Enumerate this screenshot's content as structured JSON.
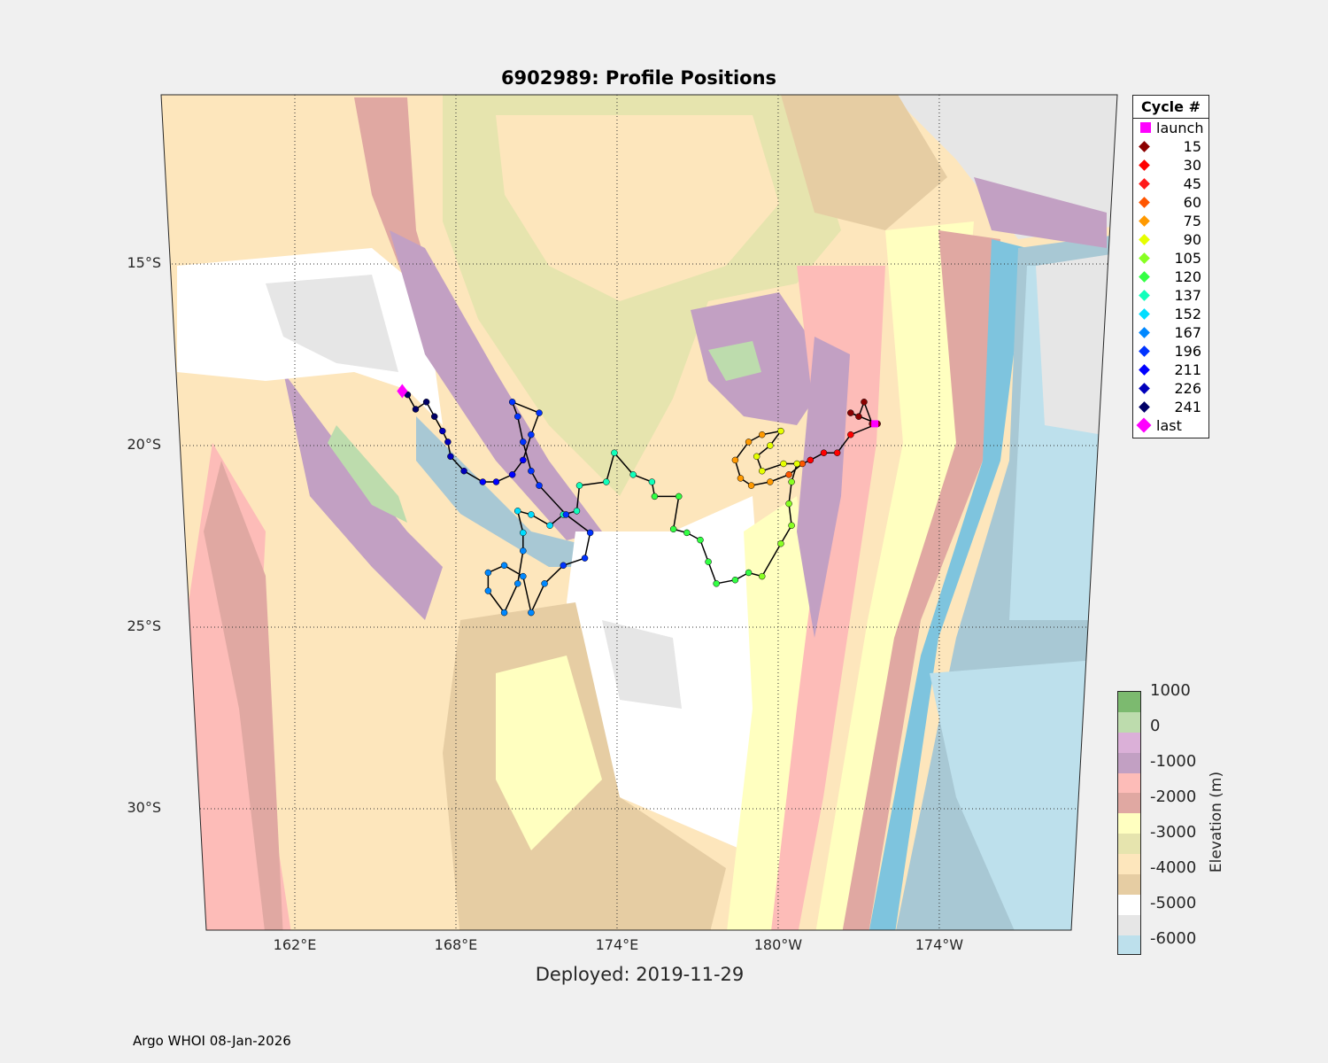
{
  "title": "6902989: Profile Positions",
  "deployed": "Deployed: 2019-11-29",
  "footer": "Argo WHOI 08-Jan-2026",
  "chart_data": {
    "type": "scatter",
    "title": "6902989: Profile Positions",
    "x_ticks": [
      {
        "lon": 162,
        "label": "162°E"
      },
      {
        "lon": 168,
        "label": "168°E"
      },
      {
        "lon": 174,
        "label": "174°E"
      },
      {
        "lon": 180,
        "label": "180°W"
      },
      {
        "lon": 186,
        "label": "174°W"
      }
    ],
    "y_ticks": [
      {
        "lat": 15,
        "label": "15°S"
      },
      {
        "lat": 20,
        "label": "20°S"
      },
      {
        "lat": 25,
        "label": "25°S"
      },
      {
        "lat": 30,
        "label": "30°S"
      }
    ],
    "legend_title": "Cycle #",
    "legend": [
      {
        "label": "launch",
        "color": "#ff00ff",
        "marker": "square"
      },
      {
        "label": "15",
        "color": "#8b0000"
      },
      {
        "label": "30",
        "color": "#ff0000"
      },
      {
        "label": "45",
        "color": "#ff1a1a"
      },
      {
        "label": "60",
        "color": "#ff5500"
      },
      {
        "label": "75",
        "color": "#ff9900"
      },
      {
        "label": "90",
        "color": "#e6ff00"
      },
      {
        "label": "105",
        "color": "#88ff22"
      },
      {
        "label": "120",
        "color": "#33ff44"
      },
      {
        "label": "137",
        "color": "#11ffbb"
      },
      {
        "label": "152",
        "color": "#00ddff"
      },
      {
        "label": "167",
        "color": "#0088ff"
      },
      {
        "label": "196",
        "color": "#0033ff"
      },
      {
        "label": "211",
        "color": "#0000ff"
      },
      {
        "label": "226",
        "color": "#0000bb"
      },
      {
        "label": "241",
        "color": "#000066"
      },
      {
        "label": "last",
        "color": "#ff00ff",
        "marker": "diamond"
      }
    ],
    "track_groups": [
      {
        "color": "#8b0000",
        "pts": [
          [
            183.5,
            19.4
          ],
          [
            183.2,
            18.8
          ],
          [
            183.0,
            19.2
          ],
          [
            182.7,
            19.1
          ],
          [
            183.7,
            19.4
          ]
        ]
      },
      {
        "color": "#ff0000",
        "pts": [
          [
            182.7,
            19.7
          ],
          [
            182.2,
            20.2
          ],
          [
            181.7,
            20.2
          ],
          [
            181.2,
            20.4
          ]
        ]
      },
      {
        "color": "#ff5500",
        "pts": [
          [
            180.9,
            20.5
          ],
          [
            180.4,
            20.8
          ]
        ]
      },
      {
        "color": "#ff9900",
        "pts": [
          [
            179.7,
            21.0
          ],
          [
            179.0,
            21.1
          ],
          [
            178.6,
            20.9
          ],
          [
            178.4,
            20.4
          ],
          [
            178.9,
            19.9
          ],
          [
            179.4,
            19.7
          ]
        ]
      },
      {
        "color": "#e6ff00",
        "pts": [
          [
            180.1,
            19.6
          ],
          [
            179.7,
            20.0
          ],
          [
            179.2,
            20.3
          ],
          [
            179.4,
            20.7
          ],
          [
            180.2,
            20.5
          ],
          [
            180.7,
            20.5
          ]
        ]
      },
      {
        "color": "#88ff22",
        "pts": [
          [
            180.5,
            21.0
          ],
          [
            180.4,
            21.6
          ],
          [
            180.5,
            22.2
          ],
          [
            180.1,
            22.7
          ],
          [
            179.4,
            23.6
          ]
        ]
      },
      {
        "color": "#33ff44",
        "pts": [
          [
            178.9,
            23.5
          ],
          [
            178.4,
            23.7
          ],
          [
            177.7,
            23.8
          ],
          [
            177.4,
            23.2
          ],
          [
            177.1,
            22.6
          ],
          [
            176.6,
            22.4
          ],
          [
            176.1,
            22.3
          ],
          [
            176.3,
            21.4
          ],
          [
            175.4,
            21.4
          ]
        ]
      },
      {
        "color": "#11ffbb",
        "pts": [
          [
            175.3,
            21.0
          ],
          [
            174.6,
            20.8
          ],
          [
            173.9,
            20.2
          ],
          [
            173.6,
            21.0
          ],
          [
            172.6,
            21.1
          ],
          [
            172.5,
            21.8
          ],
          [
            172.0,
            21.9
          ]
        ]
      },
      {
        "color": "#00ddff",
        "pts": [
          [
            171.5,
            22.2
          ],
          [
            170.8,
            21.9
          ],
          [
            170.3,
            21.8
          ],
          [
            170.5,
            22.4
          ]
        ]
      },
      {
        "color": "#0088ff",
        "pts": [
          [
            170.5,
            22.9
          ],
          [
            170.3,
            23.8
          ],
          [
            169.8,
            24.6
          ],
          [
            169.2,
            24.0
          ],
          [
            169.2,
            23.5
          ],
          [
            169.8,
            23.3
          ],
          [
            170.5,
            23.6
          ],
          [
            170.8,
            24.6
          ],
          [
            171.3,
            23.8
          ]
        ]
      },
      {
        "color": "#0033ff",
        "pts": [
          [
            172.0,
            23.3
          ],
          [
            172.8,
            23.1
          ],
          [
            173.0,
            22.4
          ],
          [
            172.1,
            21.9
          ],
          [
            171.1,
            21.1
          ],
          [
            170.8,
            20.7
          ],
          [
            170.5,
            19.9
          ],
          [
            170.3,
            19.2
          ],
          [
            170.1,
            18.8
          ],
          [
            171.1,
            19.1
          ],
          [
            170.8,
            19.7
          ]
        ]
      },
      {
        "color": "#0000ff",
        "pts": [
          [
            170.5,
            20.4
          ],
          [
            170.1,
            20.8
          ],
          [
            169.5,
            21.0
          ],
          [
            169.0,
            21.0
          ]
        ]
      },
      {
        "color": "#0000bb",
        "pts": [
          [
            168.3,
            20.7
          ],
          [
            167.8,
            20.3
          ],
          [
            167.7,
            19.9
          ],
          [
            167.5,
            19.6
          ]
        ]
      },
      {
        "color": "#000066",
        "pts": [
          [
            167.2,
            19.2
          ],
          [
            166.9,
            18.8
          ],
          [
            166.5,
            19.0
          ],
          [
            166.2,
            18.6
          ]
        ]
      }
    ],
    "launch": [
      183.6,
      19.4
    ],
    "last": [
      166.0,
      18.5
    ],
    "colorbar": {
      "label": "Elevation (m)",
      "ticks": [
        "1000",
        "0",
        "-1000",
        "-2000",
        "-3000",
        "-4000",
        "-5000",
        "-6000"
      ],
      "colors": [
        "#7cba6f",
        "#bddcad",
        "#dbb0d8",
        "#c2a0c3",
        "#fdbcb8",
        "#e0a8a2",
        "#ffffc0",
        "#e6e4ae",
        "#fde6bc",
        "#e6cda3",
        "#ffffff",
        "#e6e6e6",
        "#bde0ec",
        "#a8c8d4",
        "#7ec4de"
      ]
    }
  }
}
